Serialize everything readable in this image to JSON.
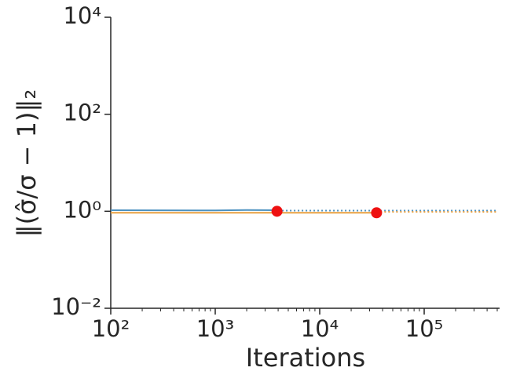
{
  "chart_data": {
    "type": "line",
    "xlabel": "Iterations",
    "ylabel": "‖(σ̂/σ − 1)‖₂",
    "xscale": "log",
    "yscale": "log",
    "xlim": [
      100,
      500000
    ],
    "ylim": [
      0.01,
      10000
    ],
    "xticks": [
      {
        "value": 100,
        "label": "10²"
      },
      {
        "value": 1000,
        "label": "10³"
      },
      {
        "value": 10000,
        "label": "10⁴"
      },
      {
        "value": 100000,
        "label": "10⁵"
      }
    ],
    "xminorticks": [
      200,
      300,
      400,
      500,
      600,
      700,
      800,
      900,
      2000,
      3000,
      4000,
      5000,
      6000,
      7000,
      8000,
      9000,
      20000,
      30000,
      40000,
      50000,
      60000,
      70000,
      80000,
      90000,
      200000,
      300000,
      400000,
      500000
    ],
    "yticks": [
      {
        "value": 0.01,
        "label": "10⁻²"
      },
      {
        "value": 1,
        "label": "10⁰"
      },
      {
        "value": 100,
        "label": "10²"
      },
      {
        "value": 10000,
        "label": "10⁴"
      }
    ],
    "series": [
      {
        "color": "#4c91c0",
        "style": "solid",
        "x": [
          100,
          1000,
          2000,
          4000
        ],
        "values": [
          1.05,
          1.04,
          1.06,
          1.05
        ]
      },
      {
        "color": "#4c91c0",
        "style": "dotted",
        "x": [
          4000,
          500000
        ],
        "values": [
          1.03,
          1.03
        ]
      },
      {
        "color": "#e8a040",
        "style": "solid",
        "x": [
          100,
          35000
        ],
        "values": [
          0.93,
          0.93
        ]
      },
      {
        "color": "#e8a040",
        "style": "dotted",
        "x": [
          35000,
          500000
        ],
        "values": [
          0.97,
          0.97
        ]
      }
    ],
    "markers": {
      "color": "#ee1111",
      "x": [
        3900,
        35000
      ],
      "values": [
        1.0,
        0.93
      ]
    }
  }
}
